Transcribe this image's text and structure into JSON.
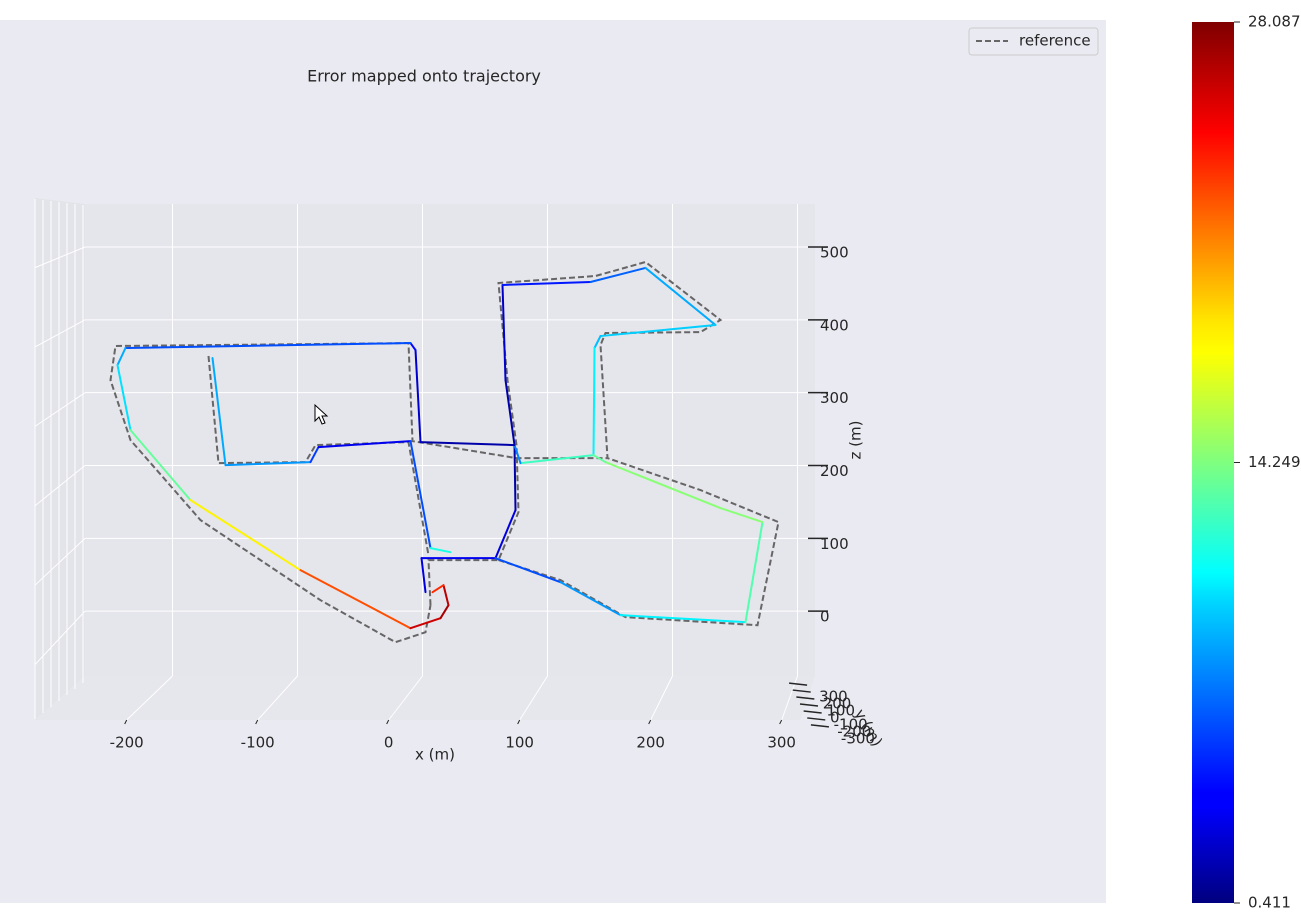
{
  "chart_data": {
    "type": "line3d",
    "title": "Error mapped onto trajectory",
    "x_label": "x (m)",
    "y_label": "y (m)",
    "z_label": "z (m)",
    "xlim": [
      -270,
      314
    ],
    "zlim": [
      -89,
      559
    ],
    "ylim": [
      -330,
      330
    ],
    "xticks": [
      -200,
      -100,
      0,
      100,
      200,
      300
    ],
    "zticks": [
      0,
      100,
      200,
      300,
      400,
      500
    ],
    "yticks": [
      -300,
      -200,
      -100,
      0,
      100,
      200,
      300
    ],
    "grid": true,
    "legend": "upper right",
    "series": [
      {
        "name": "reference",
        "color": "#666666",
        "style": "dashed",
        "x": [
          6.4,
          4.8,
          60.8,
          76.8,
          75.2,
          68.0,
          60.8,
          138.4,
          178.4,
          238.4,
          222.4,
          146.4,
          142.4,
          148.0,
          75.2,
          -8.0,
          -11.2,
          -245.6,
          -249.6,
          -233.6,
          -177.6,
          -81.6,
          -21.6,
          2.4,
          6.4,
          null,
          60.8,
          110.4,
          162.4,
          268.0,
          284.8,
          222.4,
          148.0,
          null,
          -171.2,
          -163.2,
          -93.6,
          -85.6,
          -11.2,
          4.8
        ],
        "z": [
          8.2,
          70.1,
          70.1,
          136.0,
          228.0,
          317.3,
          450.5,
          460.2,
          479.4,
          399.7,
          383.2,
          381.9,
          365.4,
          210.2,
          210.2,
          233.5,
          368.1,
          364.0,
          317.3,
          234.9,
          125.0,
          15.1,
          -42.6,
          -28.8,
          8.2,
          null,
          70.1,
          42.6,
          -8.2,
          -19.2,
          122.3,
          166.2,
          210.2,
          null,
          350.3,
          203.3,
          204.7,
          228.0,
          232.1,
          76.9
        ]
      },
      {
        "cmap": "jet",
        "x": [
          2.4,
          -0.8,
          58.4,
          74.4,
          73.6,
          66.4,
          64.0,
          134.4,
          178.4,
          234.4,
          142.4,
          137.6,
          136.8,
          78.4,
          73.6,
          -1.6,
          -5.6,
          -9.6,
          -237.6,
          -244.0,
          -233.6,
          -185.6,
          -97.6,
          -9.6,
          14.4,
          20.8,
          16.8,
          8.0,
          null,
          58.4,
          110.4,
          158.4,
          258.4,
          272.0,
          238.4,
          146.4,
          136.8,
          null,
          -168.0,
          -157.6,
          -89.6,
          -83.2,
          -9.6,
          6.4,
          22.4
        ],
        "z": [
          26.1,
          72.8,
          72.8,
          138.7,
          228.0,
          317.3,
          447.8,
          451.9,
          471.2,
          392.9,
          377.7,
          361.3,
          214.3,
          203.3,
          228.0,
          232.1,
          358.5,
          368.1,
          361.3,
          337.9,
          248.6,
          152.5,
          56.3,
          -23.4,
          -9.6,
          8.2,
          35.7,
          26.1,
          null,
          72.8,
          39.8,
          -5.5,
          -15.1,
          122.3,
          141.5,
          204.7,
          214.3,
          null,
          347.5,
          200.5,
          204.7,
          225.3,
          233.5,
          86.5,
          81.0
        ],
        "error": [
          3,
          3,
          4,
          2,
          1,
          2,
          3,
          6,
          7,
          10,
          9,
          9,
          12,
          13,
          2,
          1,
          4,
          4,
          8,
          9,
          11,
          16,
          20,
          25,
          27,
          27,
          26,
          21,
          null,
          5,
          7,
          9,
          12,
          14,
          15,
          14,
          13,
          null,
          8,
          9,
          7,
          4,
          3,
          9,
          14
        ]
      }
    ],
    "colorbar": {
      "lim": [
        0.411,
        28.087
      ],
      "ticks": [
        0.411,
        14.249,
        28.087
      ]
    }
  }
}
